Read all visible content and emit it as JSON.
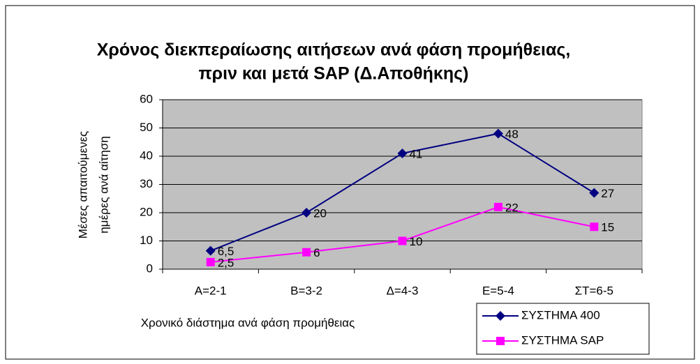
{
  "chart_data": {
    "type": "line",
    "title": [
      "Χρόνος διεκπεραίωσης αιτήσεων ανά φάση προμήθειας,",
      "πριν και μετά SAP (Δ.Αποθήκης)"
    ],
    "x_label": "Χρονικό διάστημα ανά φάση προμήθειας",
    "y_label": [
      "Μέσες απαιτούμενες",
      "ημέρες ανά αίτηση"
    ],
    "categories": [
      "A=2-1",
      "B=3-2",
      "Δ=4-3",
      "Ε=5-4",
      "ΣΤ=6-5"
    ],
    "series": [
      {
        "name": "ΣΥΣΤΗΜΑ 400",
        "color": "#000080",
        "marker": "diamond",
        "values": [
          6.5,
          20,
          41,
          48,
          27
        ],
        "value_labels": [
          "6,5",
          "20",
          "41",
          "48",
          "27"
        ]
      },
      {
        "name": "ΣΥΣΤΗΜΑ SAP",
        "color": "#ff00ff",
        "marker": "square",
        "values": [
          2.5,
          6,
          10,
          22,
          15
        ],
        "value_labels": [
          "2,5",
          "6",
          "10",
          "22",
          "15"
        ]
      }
    ],
    "ylim": [
      0,
      60
    ],
    "yticks": [
      0,
      10,
      20,
      30,
      40,
      50,
      60
    ],
    "grid": true,
    "plot_background": "#c0c0c0",
    "legend": "lower right"
  }
}
